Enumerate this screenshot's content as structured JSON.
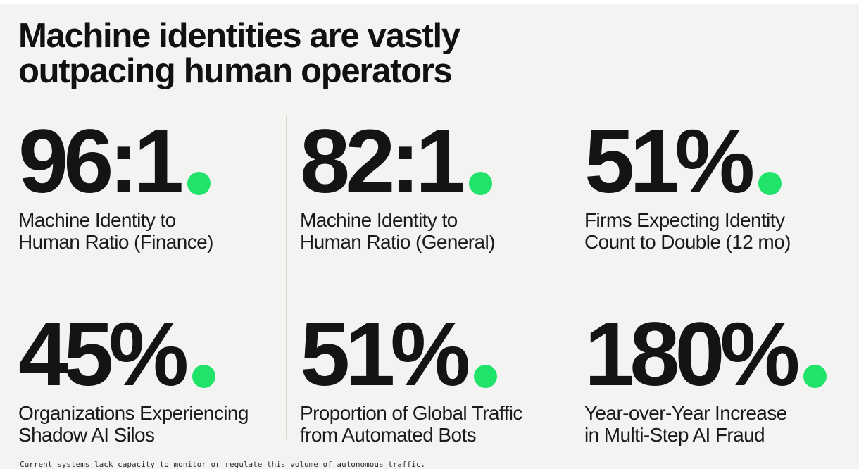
{
  "headline": {
    "line1": "Machine identities are vastly",
    "line2": "outpacing human operators"
  },
  "accent_color": "#22e36a",
  "stats": [
    {
      "value": "96:1",
      "label_line1": "Machine Identity to",
      "label_line2": "Human Ratio (Finance)"
    },
    {
      "value": "82:1",
      "label_line1": "Machine Identity to",
      "label_line2": "Human Ratio (General)"
    },
    {
      "value": "51%",
      "label_line1": "Firms Expecting Identity",
      "label_line2": "Count to Double (12 mo)"
    },
    {
      "value": "45%",
      "label_line1": "Organizations Experiencing",
      "label_line2": "Shadow AI Silos"
    },
    {
      "value": "51%",
      "label_line1": "Proportion of Global Traffic",
      "label_line2": "from Automated Bots"
    },
    {
      "value": "180%",
      "label_line1": "Year-over-Year Increase",
      "label_line2": "in Multi-Step AI Fraud"
    }
  ],
  "footnote": "Current systems lack capacity to monitor or regulate this volume of autonomous traffic."
}
